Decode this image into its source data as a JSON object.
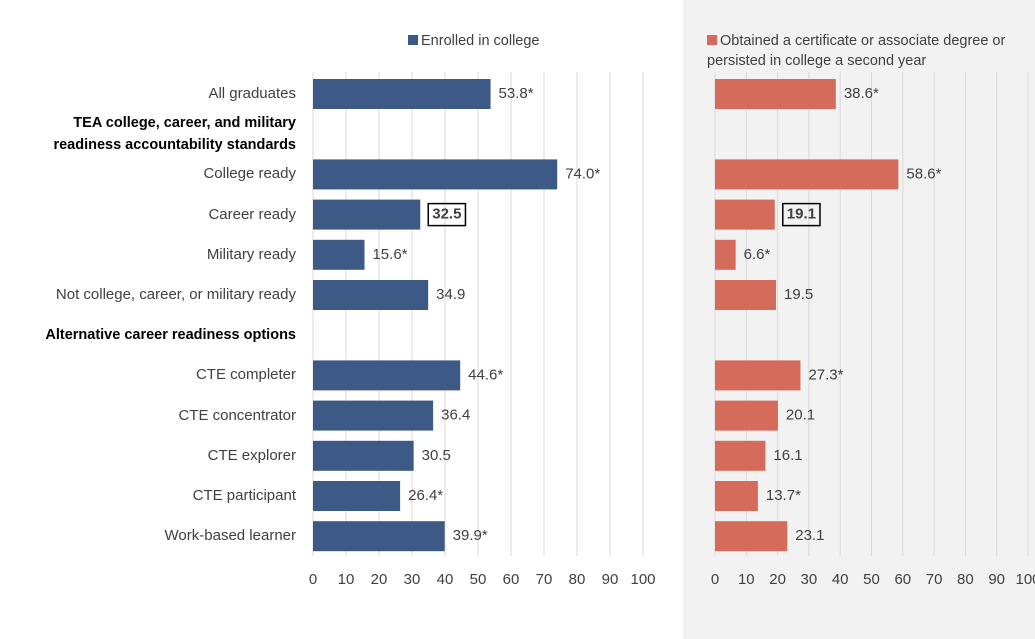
{
  "chart_data": {
    "type": "bar",
    "orientation": "horizontal",
    "categories": [
      "All graduates",
      "TEA college, career, and military readiness accountability standards",
      "College ready",
      "Career ready",
      "Military ready",
      "Not college, career, or military ready",
      "Alternative career readiness options",
      "CTE completer",
      "CTE concentrator",
      "CTE explorer",
      "CTE participant",
      "Work-based learner"
    ],
    "series": [
      {
        "name": "Enrolled in college",
        "color": "#3d5a86",
        "values": [
          53.8,
          null,
          74.0,
          32.5,
          15.6,
          34.9,
          null,
          44.6,
          36.4,
          30.5,
          26.4,
          39.9
        ],
        "value_labels": [
          "53.8*",
          null,
          "74.0*",
          "32.5",
          "15.6*",
          "34.9",
          null,
          "44.6*",
          "36.4",
          "30.5",
          "26.4*",
          "39.9*"
        ]
      },
      {
        "name": "Obtained a certificate or associate degree or persisted in college a second year",
        "color": "#d46b5b",
        "values": [
          38.6,
          null,
          58.6,
          19.1,
          6.6,
          19.5,
          null,
          27.3,
          20.1,
          16.1,
          13.7,
          23.1
        ],
        "value_labels": [
          "38.6*",
          null,
          "58.6*",
          "19.1",
          "6.6*",
          "19.5",
          null,
          "27.3*",
          "20.1",
          "16.1",
          "13.7*",
          "23.1"
        ]
      }
    ],
    "xlim": [
      0,
      100
    ],
    "xticks": [
      0,
      10,
      20,
      30,
      40,
      50,
      60,
      70,
      80,
      90,
      100
    ],
    "grid": true,
    "highlight": "Career ready"
  }
}
